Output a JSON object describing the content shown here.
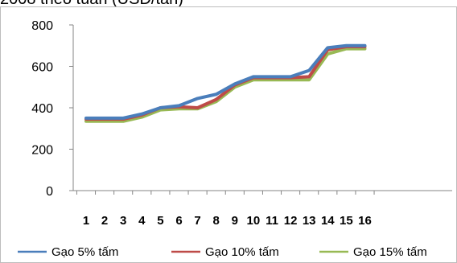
{
  "chart_data": {
    "type": "line",
    "title": "2008 theo tuần (USD/tấn)",
    "x": [
      "1",
      "2",
      "3",
      "4",
      "5",
      "6",
      "7",
      "8",
      "9",
      "10",
      "11",
      "12",
      "13",
      "14",
      "15",
      "16"
    ],
    "ylim": [
      0,
      800
    ],
    "yticks": [
      "0",
      "200",
      "400",
      "600",
      "800"
    ],
    "grid": false,
    "legend": "bottom",
    "series": [
      {
        "name": "Gạo 5% tấm",
        "color": "#4a7ebb",
        "values": [
          350,
          350,
          350,
          370,
          400,
          410,
          445,
          465,
          515,
          550,
          550,
          550,
          580,
          690,
          700,
          700
        ]
      },
      {
        "name": "Gạo 10% tấm",
        "color": "#be4b48",
        "values": [
          345,
          345,
          345,
          365,
          400,
          405,
          400,
          440,
          510,
          545,
          545,
          545,
          550,
          680,
          695,
          695
        ]
      },
      {
        "name": "Gạo 15% tấm",
        "color": "#98b954",
        "values": [
          335,
          335,
          335,
          355,
          390,
          395,
          395,
          430,
          500,
          535,
          535,
          535,
          535,
          660,
          685,
          685
        ]
      }
    ]
  }
}
